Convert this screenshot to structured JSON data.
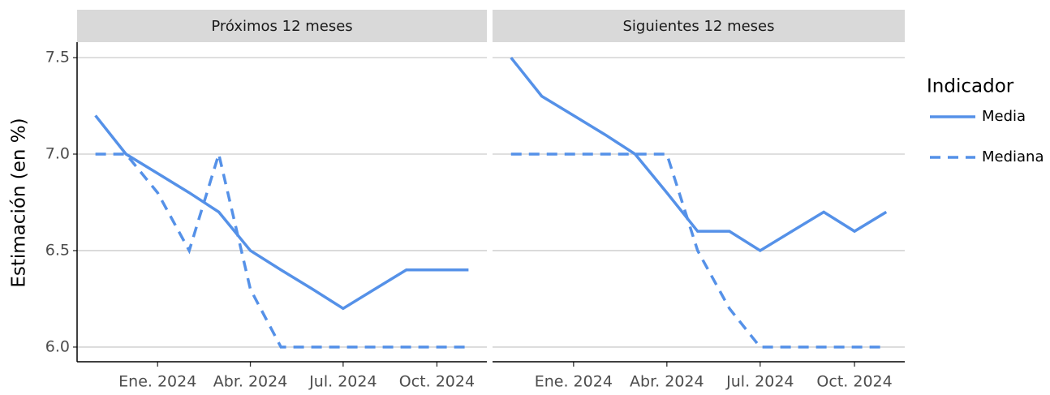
{
  "chart_data": [
    {
      "type": "line",
      "title": "Próximos 12 meses",
      "y_label": "Estimación (en %)",
      "legend_title": "Indicador",
      "x": [
        "2023-11",
        "2023-12",
        "2024-01",
        "2024-02",
        "2024-03",
        "2024-04",
        "2024-05",
        "2024-06",
        "2024-07",
        "2024-08",
        "2024-09",
        "2024-10",
        "2024-11"
      ],
      "series": [
        {
          "name": "Media",
          "color": "#5591e8",
          "dash": "solid",
          "values": [
            7.2,
            7.0,
            6.9,
            6.8,
            6.7,
            6.5,
            6.4,
            6.3,
            6.2,
            6.3,
            6.4,
            6.4,
            6.4
          ]
        },
        {
          "name": "Mediana",
          "color": "#5591e8",
          "dash": "dashed",
          "values": [
            7.0,
            7.0,
            6.8,
            6.5,
            7.0,
            6.3,
            6.0,
            6.0,
            6.0,
            6.0,
            6.0,
            6.0,
            6.0
          ]
        }
      ],
      "xlim": [
        "2023-10-14",
        "2024-11-19"
      ],
      "xticks": [
        {
          "value": "2024-01",
          "label": "Ene. 2024"
        },
        {
          "value": "2024-04",
          "label": "Abr. 2024"
        },
        {
          "value": "2024-07",
          "label": "Jul. 2024"
        },
        {
          "value": "2024-10",
          "label": "Oct. 2024"
        }
      ],
      "ylim": [
        5.924,
        7.58
      ],
      "yticks": [
        {
          "value": 6.0,
          "label": "6.0"
        },
        {
          "value": 6.5,
          "label": "6.5"
        },
        {
          "value": 7.0,
          "label": "7.0"
        },
        {
          "value": 7.5,
          "label": "7.5"
        }
      ],
      "grid": true
    },
    {
      "type": "line",
      "title": "Siguientes 12 meses",
      "x": [
        "2023-11",
        "2023-12",
        "2024-01",
        "2024-02",
        "2024-03",
        "2024-04",
        "2024-05",
        "2024-06",
        "2024-07",
        "2024-08",
        "2024-09",
        "2024-10",
        "2024-11"
      ],
      "series": [
        {
          "name": "Media",
          "color": "#5591e8",
          "dash": "solid",
          "values": [
            7.5,
            7.3,
            7.2,
            7.1,
            7.0,
            6.8,
            6.6,
            6.6,
            6.5,
            6.6,
            6.7,
            6.6,
            6.7
          ]
        },
        {
          "name": "Mediana",
          "color": "#5591e8",
          "dash": "dashed",
          "values": [
            7.0,
            7.0,
            7.0,
            7.0,
            7.0,
            7.0,
            6.5,
            6.2,
            6.0,
            6.0,
            6.0,
            6.0,
            6.0
          ]
        }
      ],
      "xlim": [
        "2023-10-14",
        "2024-11-19"
      ],
      "xticks": [
        {
          "value": "2024-01",
          "label": "Ene. 2024"
        },
        {
          "value": "2024-04",
          "label": "Abr. 2024"
        },
        {
          "value": "2024-07",
          "label": "Jul. 2024"
        },
        {
          "value": "2024-10",
          "label": "Oct. 2024"
        }
      ],
      "ylim": [
        5.924,
        7.58
      ],
      "yticks": [
        {
          "value": 6.0,
          "label": "6.0"
        },
        {
          "value": 6.5,
          "label": "6.5"
        },
        {
          "value": 7.0,
          "label": "7.0"
        },
        {
          "value": 7.5,
          "label": "7.5"
        }
      ],
      "grid": true
    }
  ]
}
